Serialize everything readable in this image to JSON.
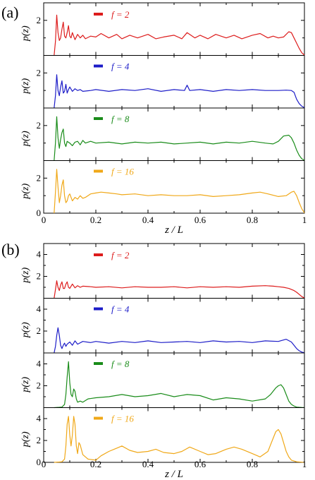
{
  "chart_data": [
    {
      "panel_label": "(a)",
      "type": "line",
      "xlabel": "z / L",
      "ylabel": "p(z)",
      "xlim": [
        0,
        1
      ],
      "xticks": [
        "0",
        "0.2",
        "0.4",
        "0.6",
        "0.8",
        "1"
      ],
      "ylim": [
        0,
        3
      ],
      "yticks_shown": [
        "0",
        "2"
      ],
      "series": [
        {
          "name": "f = 2",
          "color": "#dd1c1c",
          "x": [
            0.04,
            0.045,
            0.05,
            0.055,
            0.06,
            0.065,
            0.07,
            0.075,
            0.08,
            0.085,
            0.09,
            0.095,
            0.1,
            0.105,
            0.11,
            0.12,
            0.13,
            0.14,
            0.15,
            0.16,
            0.18,
            0.2,
            0.22,
            0.25,
            0.28,
            0.3,
            0.33,
            0.36,
            0.4,
            0.43,
            0.46,
            0.5,
            0.53,
            0.55,
            0.58,
            0.6,
            0.63,
            0.66,
            0.7,
            0.73,
            0.76,
            0.8,
            0.83,
            0.86,
            0.88,
            0.9,
            0.92,
            0.94,
            0.95,
            0.96,
            0.97,
            0.98,
            0.99,
            1.0
          ],
          "y": [
            0,
            0.8,
            2.3,
            1.3,
            0.85,
            1.0,
            1.5,
            1.9,
            1.1,
            1.0,
            1.3,
            1.7,
            1.1,
            1.0,
            1.3,
            0.9,
            1.2,
            1.0,
            1.15,
            0.95,
            1.1,
            1.05,
            1.25,
            1.0,
            1.2,
            0.95,
            1.15,
            1.0,
            1.2,
            0.95,
            1.05,
            1.15,
            0.95,
            1.3,
            1.0,
            1.15,
            0.95,
            1.2,
            1.0,
            1.15,
            0.95,
            1.15,
            1.25,
            1.0,
            1.1,
            1.0,
            1.05,
            1.35,
            1.3,
            1.0,
            0.7,
            0.4,
            0.15,
            0.02
          ]
        },
        {
          "name": "f = 4",
          "color": "#1c1cc8",
          "x": [
            0.04,
            0.045,
            0.05,
            0.055,
            0.06,
            0.065,
            0.07,
            0.075,
            0.08,
            0.085,
            0.09,
            0.095,
            0.1,
            0.11,
            0.12,
            0.13,
            0.14,
            0.15,
            0.18,
            0.2,
            0.25,
            0.3,
            0.35,
            0.4,
            0.45,
            0.5,
            0.54,
            0.55,
            0.56,
            0.6,
            0.65,
            0.7,
            0.75,
            0.8,
            0.85,
            0.9,
            0.93,
            0.95,
            0.96,
            0.97,
            0.98,
            0.99,
            1.0
          ],
          "y": [
            0,
            0.7,
            1.9,
            1.0,
            0.7,
            1.2,
            1.55,
            0.85,
            0.95,
            1.35,
            0.85,
            1.05,
            1.2,
            0.95,
            1.1,
            1.0,
            1.05,
            0.95,
            1.0,
            1.05,
            0.95,
            1.05,
            1.0,
            1.1,
            0.95,
            1.05,
            1.0,
            1.3,
            1.0,
            1.05,
            0.95,
            1.05,
            1.0,
            1.05,
            1.0,
            1.0,
            1.02,
            1.0,
            0.9,
            0.5,
            0.25,
            0.1,
            0.02
          ]
        },
        {
          "name": "f = 8",
          "color": "#1a8c1a",
          "x": [
            0.04,
            0.045,
            0.05,
            0.055,
            0.06,
            0.065,
            0.07,
            0.075,
            0.08,
            0.085,
            0.09,
            0.1,
            0.11,
            0.12,
            0.13,
            0.14,
            0.15,
            0.16,
            0.18,
            0.2,
            0.25,
            0.3,
            0.35,
            0.4,
            0.45,
            0.5,
            0.55,
            0.6,
            0.65,
            0.7,
            0.75,
            0.8,
            0.85,
            0.88,
            0.9,
            0.92,
            0.94,
            0.95,
            0.96,
            0.97,
            0.98,
            0.99,
            1.0
          ],
          "y": [
            0,
            1.0,
            2.5,
            1.3,
            0.7,
            1.2,
            1.6,
            1.8,
            1.0,
            0.8,
            1.1,
            1.0,
            0.85,
            1.05,
            1.1,
            0.9,
            1.15,
            1.0,
            1.1,
            1.0,
            1.05,
            0.95,
            1.05,
            1.0,
            1.05,
            0.95,
            1.0,
            1.05,
            0.95,
            1.05,
            1.0,
            1.1,
            1.0,
            0.95,
            1.1,
            1.4,
            1.45,
            1.3,
            1.0,
            0.6,
            0.3,
            0.1,
            0.02
          ]
        },
        {
          "name": "f = 16",
          "color": "#f0a818",
          "x": [
            0.04,
            0.045,
            0.05,
            0.055,
            0.06,
            0.065,
            0.07,
            0.075,
            0.08,
            0.085,
            0.09,
            0.095,
            0.1,
            0.11,
            0.12,
            0.13,
            0.14,
            0.15,
            0.16,
            0.18,
            0.2,
            0.22,
            0.25,
            0.28,
            0.3,
            0.35,
            0.4,
            0.45,
            0.5,
            0.55,
            0.6,
            0.65,
            0.7,
            0.75,
            0.8,
            0.83,
            0.86,
            0.9,
            0.93,
            0.95,
            0.96,
            0.97,
            0.98,
            0.99,
            1.0
          ],
          "y": [
            0,
            1.2,
            2.5,
            1.5,
            0.6,
            1.0,
            1.6,
            1.9,
            1.0,
            0.6,
            0.7,
            1.0,
            1.1,
            0.7,
            0.9,
            0.8,
            1.0,
            0.85,
            0.9,
            1.1,
            1.15,
            1.2,
            1.15,
            1.1,
            1.05,
            1.1,
            1.0,
            1.05,
            1.0,
            1.0,
            1.05,
            0.95,
            1.0,
            1.05,
            1.15,
            1.2,
            1.1,
            0.95,
            1.0,
            1.2,
            1.25,
            1.0,
            0.6,
            0.25,
            0.02
          ]
        }
      ]
    },
    {
      "panel_label": "(b)",
      "type": "line",
      "xlabel": "z / L",
      "ylabel": "p(z)",
      "xlim": [
        0,
        1
      ],
      "xticks": [
        "0",
        "0.2",
        "0.4",
        "0.6",
        "0.8",
        "1"
      ],
      "ylim": [
        0,
        5
      ],
      "yticks_shown": [
        "0",
        "2",
        "4"
      ],
      "series": [
        {
          "name": "f = 2",
          "color": "#dd1c1c",
          "x": [
            0.04,
            0.045,
            0.05,
            0.055,
            0.06,
            0.065,
            0.07,
            0.075,
            0.08,
            0.085,
            0.09,
            0.095,
            0.1,
            0.11,
            0.12,
            0.13,
            0.14,
            0.15,
            0.18,
            0.2,
            0.25,
            0.3,
            0.35,
            0.4,
            0.45,
            0.5,
            0.55,
            0.6,
            0.65,
            0.7,
            0.75,
            0.8,
            0.85,
            0.88,
            0.9,
            0.92,
            0.94,
            0.95,
            0.96,
            0.97,
            0.98,
            0.99,
            1.0
          ],
          "y": [
            0,
            0.8,
            1.6,
            1.0,
            0.7,
            1.2,
            1.5,
            0.9,
            0.9,
            1.3,
            1.5,
            1.0,
            0.9,
            1.3,
            0.95,
            1.15,
            1.0,
            1.1,
            1.05,
            1.0,
            1.05,
            0.95,
            1.05,
            1.0,
            1.0,
            1.05,
            0.95,
            1.05,
            1.0,
            1.05,
            1.0,
            1.1,
            1.15,
            1.1,
            1.05,
            1.0,
            0.9,
            0.8,
            0.7,
            0.55,
            0.35,
            0.15,
            0.02
          ]
        },
        {
          "name": "f = 4",
          "color": "#1c1cc8",
          "x": [
            0.04,
            0.045,
            0.05,
            0.055,
            0.06,
            0.065,
            0.07,
            0.075,
            0.08,
            0.085,
            0.09,
            0.1,
            0.11,
            0.12,
            0.13,
            0.15,
            0.18,
            0.2,
            0.25,
            0.3,
            0.35,
            0.4,
            0.45,
            0.5,
            0.55,
            0.6,
            0.65,
            0.7,
            0.75,
            0.8,
            0.85,
            0.9,
            0.93,
            0.95,
            0.96,
            0.97,
            0.98,
            0.99,
            1.0
          ],
          "y": [
            0,
            0.6,
            1.6,
            2.3,
            1.6,
            0.7,
            0.4,
            0.7,
            0.9,
            0.6,
            0.8,
            1.0,
            0.7,
            1.1,
            0.8,
            1.05,
            0.95,
            1.05,
            0.9,
            1.05,
            0.95,
            1.1,
            0.95,
            1.0,
            1.05,
            0.95,
            1.1,
            1.0,
            1.05,
            0.95,
            1.1,
            1.05,
            1.25,
            1.0,
            0.7,
            0.4,
            0.2,
            0.08,
            0.02
          ]
        },
        {
          "name": "f = 8",
          "color": "#1a8c1a",
          "x": [
            0.04,
            0.05,
            0.06,
            0.07,
            0.08,
            0.085,
            0.09,
            0.095,
            0.1,
            0.105,
            0.11,
            0.115,
            0.12,
            0.125,
            0.13,
            0.14,
            0.15,
            0.17,
            0.2,
            0.25,
            0.3,
            0.35,
            0.4,
            0.45,
            0.5,
            0.55,
            0.6,
            0.65,
            0.7,
            0.75,
            0.8,
            0.85,
            0.87,
            0.89,
            0.9,
            0.91,
            0.92,
            0.93,
            0.94,
            0.95,
            0.96,
            0.97,
            0.98,
            0.99,
            1.0
          ],
          "y": [
            0,
            0.02,
            0.03,
            0.05,
            0.3,
            1.2,
            2.8,
            4.2,
            2.3,
            1.2,
            1.0,
            1.7,
            1.5,
            0.8,
            0.5,
            0.6,
            0.5,
            0.8,
            0.9,
            1.0,
            1.2,
            1.0,
            1.1,
            1.3,
            1.0,
            1.2,
            1.1,
            0.7,
            0.9,
            0.8,
            0.6,
            0.8,
            1.2,
            1.8,
            2.0,
            2.1,
            1.8,
            1.2,
            0.6,
            0.3,
            0.15,
            0.05,
            0.03,
            0.02,
            0.01
          ]
        },
        {
          "name": "f = 16",
          "color": "#f0a818",
          "x": [
            0.04,
            0.05,
            0.06,
            0.07,
            0.08,
            0.085,
            0.09,
            0.095,
            0.1,
            0.105,
            0.11,
            0.115,
            0.12,
            0.125,
            0.13,
            0.135,
            0.14,
            0.15,
            0.17,
            0.2,
            0.22,
            0.25,
            0.28,
            0.3,
            0.33,
            0.36,
            0.4,
            0.43,
            0.46,
            0.5,
            0.53,
            0.56,
            0.6,
            0.63,
            0.66,
            0.7,
            0.73,
            0.76,
            0.8,
            0.83,
            0.86,
            0.88,
            0.89,
            0.9,
            0.91,
            0.92,
            0.93,
            0.94,
            0.95,
            0.97,
            0.99,
            1.0
          ],
          "y": [
            0,
            0.02,
            0.03,
            0.05,
            0.3,
            1.5,
            3.5,
            4.2,
            2.5,
            1.5,
            2.5,
            4.2,
            3.5,
            1.5,
            0.8,
            1.8,
            1.6,
            0.7,
            0.3,
            0.2,
            0.6,
            1.0,
            1.3,
            1.5,
            1.1,
            0.9,
            1.0,
            1.2,
            0.9,
            0.8,
            1.0,
            1.4,
            1.0,
            0.7,
            0.8,
            1.2,
            1.4,
            1.2,
            0.8,
            0.5,
            1.0,
            2.2,
            2.8,
            3.0,
            2.6,
            1.8,
            1.0,
            0.5,
            0.2,
            0.05,
            0.02,
            0.01
          ]
        }
      ]
    }
  ]
}
